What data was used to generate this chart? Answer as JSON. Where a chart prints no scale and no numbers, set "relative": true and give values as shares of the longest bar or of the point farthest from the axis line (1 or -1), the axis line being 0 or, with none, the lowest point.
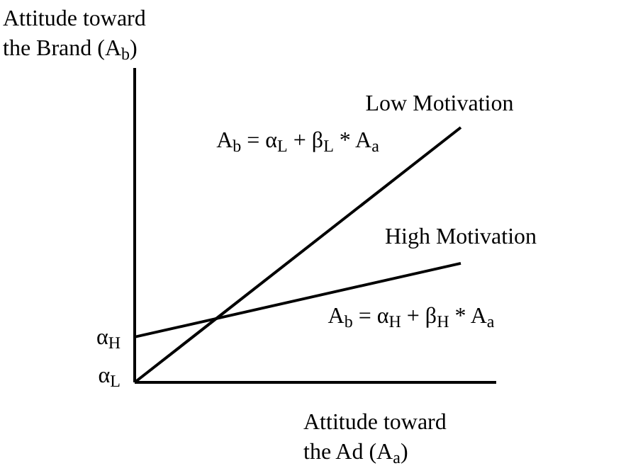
{
  "chart_data": {
    "type": "line",
    "relative": true,
    "categories": [
      null,
      null
    ],
    "ylabel": "Attitude toward the Brand (A$_{b}$)",
    "xlabel": "Attitude toward the Ad (A$_{a}$)",
    "marker": "none",
    "series": [
      {
        "name": "Low Motivation",
        "color": "#000000",
        "values": [
          0,
          1
        ]
      },
      {
        "name": "High Motivation",
        "color": "#000000",
        "values": [
          0.178,
          0.467
        ]
      }
    ],
    "annotations": [
      "A$_{b}$ = α$_{L}$ + β$_{L}$ * A$_{a}$",
      "A$_{b}$ = α$_{H}$ + β$_{H}$ * A$_{a}$",
      "α$_{H}$",
      "α$_{L}$"
    ]
  }
}
